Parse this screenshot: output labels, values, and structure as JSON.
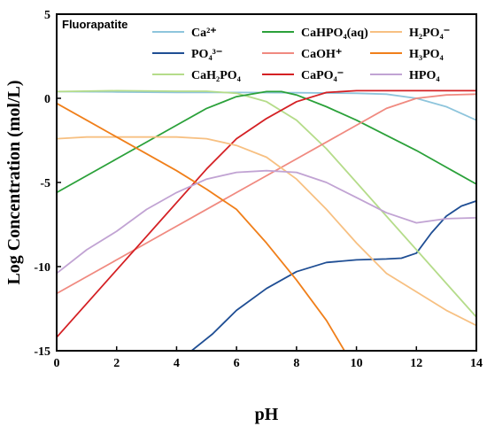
{
  "chart_data": {
    "type": "line",
    "title": "",
    "annotation": "Fluorapatite",
    "xlabel": "pH",
    "ylabel": "Log Concentration (mol/L)",
    "xlim": [
      0,
      14
    ],
    "ylim": [
      -15,
      5
    ],
    "xticks": [
      "0",
      "2",
      "4",
      "6",
      "8",
      "10",
      "12",
      "14"
    ],
    "yticks": [
      "5",
      "0",
      "-5",
      "-10",
      "-15"
    ],
    "grid": false,
    "legend_position": "top",
    "series": [
      {
        "name": "Ca²⁺",
        "color": "#8ec5dc",
        "points": [
          [
            0,
            0.4
          ],
          [
            2,
            0.38
          ],
          [
            4,
            0.35
          ],
          [
            6,
            0.35
          ],
          [
            8,
            0.33
          ],
          [
            10,
            0.3
          ],
          [
            11,
            0.25
          ],
          [
            12,
            0.0
          ],
          [
            13,
            -0.5
          ],
          [
            14,
            -1.3
          ]
        ]
      },
      {
        "name": "PO₄³⁻",
        "color": "#1f4e94",
        "points": [
          [
            4.5,
            -15
          ],
          [
            5.2,
            -14
          ],
          [
            6,
            -12.6
          ],
          [
            7,
            -11.3
          ],
          [
            8,
            -10.3
          ],
          [
            9,
            -9.75
          ],
          [
            10,
            -9.6
          ],
          [
            11,
            -9.55
          ],
          [
            11.5,
            -9.5
          ],
          [
            12,
            -9.2
          ],
          [
            12.5,
            -8.0
          ],
          [
            13,
            -7.0
          ],
          [
            13.5,
            -6.4
          ],
          [
            14,
            -6.1
          ]
        ]
      },
      {
        "name": "CaH₂PO₄",
        "color": "#b5dc8a",
        "points": [
          [
            0,
            0.4
          ],
          [
            2,
            0.45
          ],
          [
            4,
            0.42
          ],
          [
            5,
            0.42
          ],
          [
            6,
            0.3
          ],
          [
            7,
            -0.2
          ],
          [
            8,
            -1.3
          ],
          [
            9,
            -3.0
          ],
          [
            10,
            -5.0
          ],
          [
            11,
            -7.0
          ],
          [
            12,
            -9.0
          ],
          [
            13,
            -11.0
          ],
          [
            14,
            -13.0
          ]
        ]
      },
      {
        "name": "CaHPO₄(aq)",
        "color": "#2ba13a",
        "points": [
          [
            0,
            -5.6
          ],
          [
            1,
            -4.6
          ],
          [
            2,
            -3.6
          ],
          [
            3,
            -2.6
          ],
          [
            4,
            -1.6
          ],
          [
            5,
            -0.6
          ],
          [
            6,
            0.1
          ],
          [
            7,
            0.4
          ],
          [
            7.5,
            0.4
          ],
          [
            8,
            0.2
          ],
          [
            9,
            -0.5
          ],
          [
            10,
            -1.3
          ],
          [
            11,
            -2.2
          ],
          [
            12,
            -3.1
          ],
          [
            13,
            -4.1
          ],
          [
            14,
            -5.1
          ]
        ]
      },
      {
        "name": "CaOH⁺",
        "color": "#f08a80",
        "points": [
          [
            0,
            -11.6
          ],
          [
            2,
            -9.6
          ],
          [
            4,
            -7.6
          ],
          [
            6,
            -5.6
          ],
          [
            8,
            -3.6
          ],
          [
            10,
            -1.6
          ],
          [
            11,
            -0.6
          ],
          [
            12,
            0.0
          ],
          [
            13,
            0.2
          ],
          [
            14,
            0.25
          ]
        ]
      },
      {
        "name": "CaPO₄⁻",
        "color": "#d42024",
        "points": [
          [
            0,
            -14.2
          ],
          [
            2,
            -10.2
          ],
          [
            3,
            -8.2
          ],
          [
            4,
            -6.2
          ],
          [
            5,
            -4.2
          ],
          [
            6,
            -2.4
          ],
          [
            7,
            -1.2
          ],
          [
            8,
            -0.2
          ],
          [
            9,
            0.35
          ],
          [
            10,
            0.45
          ],
          [
            12,
            0.45
          ],
          [
            14,
            0.45
          ]
        ]
      },
      {
        "name": "H₂PO₄⁻",
        "color": "#f7c082",
        "points": [
          [
            0,
            -2.4
          ],
          [
            1,
            -2.3
          ],
          [
            2,
            -2.3
          ],
          [
            3,
            -2.3
          ],
          [
            4,
            -2.3
          ],
          [
            5,
            -2.4
          ],
          [
            6,
            -2.8
          ],
          [
            7,
            -3.5
          ],
          [
            8,
            -4.8
          ],
          [
            9,
            -6.6
          ],
          [
            10,
            -8.6
          ],
          [
            11,
            -10.4
          ],
          [
            12,
            -11.5
          ],
          [
            13,
            -12.6
          ],
          [
            14,
            -13.5
          ]
        ]
      },
      {
        "name": "H₃PO₄",
        "color": "#f07f1a",
        "points": [
          [
            0,
            -0.3
          ],
          [
            1,
            -1.3
          ],
          [
            2,
            -2.3
          ],
          [
            3,
            -3.3
          ],
          [
            4,
            -4.3
          ],
          [
            5,
            -5.4
          ],
          [
            6,
            -6.6
          ],
          [
            7,
            -8.6
          ],
          [
            8,
            -10.8
          ],
          [
            9,
            -13.2
          ],
          [
            9.6,
            -15
          ]
        ]
      },
      {
        "name": "HPO₄",
        "color": "#c1a3d3",
        "points": [
          [
            0,
            -10.4
          ],
          [
            1,
            -9.0
          ],
          [
            2,
            -7.9
          ],
          [
            3,
            -6.6
          ],
          [
            4,
            -5.6
          ],
          [
            5,
            -4.8
          ],
          [
            6,
            -4.4
          ],
          [
            7,
            -4.3
          ],
          [
            8,
            -4.4
          ],
          [
            9,
            -5.0
          ],
          [
            10,
            -5.9
          ],
          [
            11,
            -6.8
          ],
          [
            12,
            -7.4
          ],
          [
            13,
            -7.15
          ],
          [
            14,
            -7.1
          ]
        ]
      }
    ]
  }
}
